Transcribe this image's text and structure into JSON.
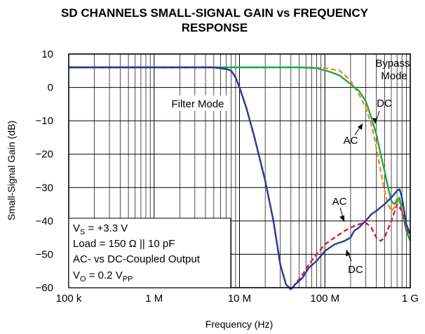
{
  "chart_data": {
    "type": "line",
    "title_line1": "SD CHANNELS SMALL-SIGNAL GAIN vs FREQUENCY",
    "title_line2": "RESPONSE",
    "xlabel": "Frequency (Hz)",
    "ylabel": "Small-Signal Gain (dB)",
    "x_scale": "log",
    "xlim": [
      100000,
      1000000000
    ],
    "ylim": [
      -60,
      10
    ],
    "x_ticks": [
      {
        "value": 100000,
        "label": "100 k"
      },
      {
        "value": 1000000,
        "label": "1 M"
      },
      {
        "value": 10000000,
        "label": "10 M"
      },
      {
        "value": 100000000,
        "label": "100 M"
      },
      {
        "value": 1000000000,
        "label": "1 G"
      }
    ],
    "y_ticks": [
      {
        "value": 10,
        "label": "10"
      },
      {
        "value": 0,
        "label": "0"
      },
      {
        "value": -10,
        "label": "−10"
      },
      {
        "value": -20,
        "label": "−20"
      },
      {
        "value": -30,
        "label": "−30"
      },
      {
        "value": -40,
        "label": "−40"
      },
      {
        "value": -50,
        "label": "−50"
      },
      {
        "value": -60,
        "label": "−60"
      }
    ],
    "grid": true,
    "series": [
      {
        "group": "Bypass Mode",
        "coupling": "AC",
        "color": "#f08a24",
        "dash": "7,4",
        "points": [
          [
            100000,
            6
          ],
          [
            1000000,
            6
          ],
          [
            10000000,
            6
          ],
          [
            50000000,
            6
          ],
          [
            100000000,
            5.8
          ],
          [
            150000000,
            5
          ],
          [
            200000000,
            2
          ],
          [
            250000000,
            -2
          ],
          [
            300000000,
            -6
          ],
          [
            350000000,
            -11
          ],
          [
            400000000,
            -18
          ],
          [
            450000000,
            -25
          ],
          [
            500000000,
            -31
          ],
          [
            550000000,
            -35
          ],
          [
            600000000,
            -37
          ],
          [
            650000000,
            -36
          ],
          [
            700000000,
            -33
          ],
          [
            750000000,
            -35
          ],
          [
            800000000,
            -38
          ],
          [
            900000000,
            -42
          ],
          [
            1000000000,
            -45
          ]
        ]
      },
      {
        "group": "Bypass Mode",
        "coupling": "DC",
        "color": "#22a84a",
        "dash": "",
        "points": [
          [
            100000,
            6
          ],
          [
            1000000,
            6
          ],
          [
            10000000,
            6
          ],
          [
            50000000,
            6
          ],
          [
            80000000,
            5.8
          ],
          [
            120000000,
            4.5
          ],
          [
            150000000,
            3.5
          ],
          [
            200000000,
            1
          ],
          [
            250000000,
            -1
          ],
          [
            300000000,
            -4
          ],
          [
            350000000,
            -9
          ],
          [
            400000000,
            -14
          ],
          [
            450000000,
            -20
          ],
          [
            500000000,
            -25
          ],
          [
            550000000,
            -30
          ],
          [
            600000000,
            -34
          ],
          [
            650000000,
            -35
          ],
          [
            700000000,
            -34
          ],
          [
            750000000,
            -33
          ],
          [
            800000000,
            -37
          ],
          [
            900000000,
            -43
          ],
          [
            1000000000,
            -46
          ]
        ]
      },
      {
        "group": "Filter Mode",
        "coupling": "AC",
        "color": "#d8232a",
        "dash": "7,4",
        "points": [
          [
            100000,
            6
          ],
          [
            1000000,
            6
          ],
          [
            5000000,
            6
          ],
          [
            7000000,
            5.5
          ],
          [
            8000000,
            5
          ],
          [
            9000000,
            3
          ],
          [
            10000000,
            0
          ],
          [
            12000000,
            -6
          ],
          [
            15000000,
            -15
          ],
          [
            20000000,
            -28
          ],
          [
            25000000,
            -40
          ],
          [
            30000000,
            -53
          ],
          [
            35000000,
            -59
          ],
          [
            40000000,
            -60.5
          ],
          [
            45000000,
            -59
          ],
          [
            55000000,
            -56
          ],
          [
            65000000,
            -53
          ],
          [
            80000000,
            -50
          ],
          [
            100000000,
            -47
          ],
          [
            130000000,
            -45
          ],
          [
            170000000,
            -43
          ],
          [
            200000000,
            -42
          ],
          [
            250000000,
            -41
          ],
          [
            300000000,
            -40.5
          ],
          [
            350000000,
            -42
          ],
          [
            400000000,
            -45
          ],
          [
            450000000,
            -46
          ],
          [
            500000000,
            -45
          ],
          [
            600000000,
            -40
          ],
          [
            700000000,
            -35
          ],
          [
            800000000,
            -37
          ],
          [
            900000000,
            -42
          ],
          [
            1000000000,
            -45
          ]
        ]
      },
      {
        "group": "Filter Mode",
        "coupling": "DC",
        "color": "#2b3a9c",
        "dash": "",
        "points": [
          [
            100000,
            6
          ],
          [
            1000000,
            6
          ],
          [
            5000000,
            6
          ],
          [
            7000000,
            5.5
          ],
          [
            8000000,
            5
          ],
          [
            9000000,
            3
          ],
          [
            10000000,
            0
          ],
          [
            12000000,
            -6
          ],
          [
            15000000,
            -15
          ],
          [
            20000000,
            -28
          ],
          [
            25000000,
            -40
          ],
          [
            30000000,
            -53
          ],
          [
            35000000,
            -59
          ],
          [
            40000000,
            -60.5
          ],
          [
            45000000,
            -59
          ],
          [
            55000000,
            -57
          ],
          [
            65000000,
            -54
          ],
          [
            80000000,
            -52
          ],
          [
            100000000,
            -49
          ],
          [
            130000000,
            -47
          ],
          [
            170000000,
            -46
          ],
          [
            200000000,
            -45
          ],
          [
            220000000,
            -43
          ],
          [
            250000000,
            -42
          ],
          [
            300000000,
            -40
          ],
          [
            350000000,
            -38
          ],
          [
            400000000,
            -37
          ],
          [
            500000000,
            -35
          ],
          [
            600000000,
            -33
          ],
          [
            700000000,
            -31
          ],
          [
            750000000,
            -30.5
          ],
          [
            800000000,
            -33
          ],
          [
            900000000,
            -41
          ],
          [
            1000000000,
            -44
          ]
        ]
      }
    ],
    "annotations": {
      "bypass_mode": "Bypass\nMode",
      "filter_mode": "Filter Mode",
      "ac_top": "AC",
      "dc_top": "DC",
      "ac_bottom": "AC",
      "dc_bottom": "DC"
    },
    "conditions": {
      "vs_main": "V",
      "vs_sub": "S",
      "vs_rest": " = +3.3 V",
      "load": "Load = 150 Ω || 10 pF",
      "coupling": "AC- vs DC-Coupled Output",
      "vo_main": "V",
      "vo_sub": "O",
      "vo_mid": " = 0.2 V",
      "vo_sub2": "PP"
    }
  }
}
